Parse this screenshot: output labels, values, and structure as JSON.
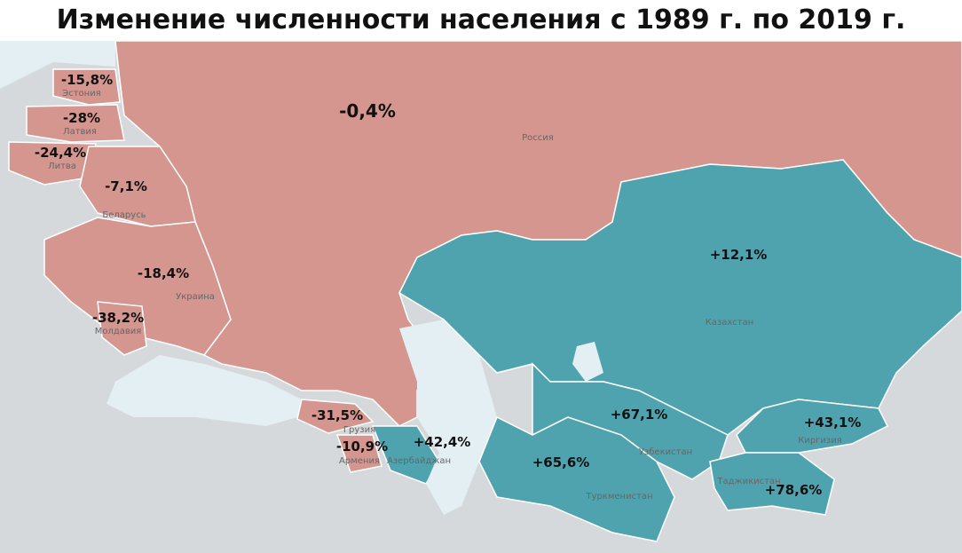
{
  "title": "Изменение численности населения с 1989 г. по 2019 г.",
  "regions": [
    {
      "name": "Эстония",
      "change": "-15,8%"
    },
    {
      "name": "Латвия",
      "change": "-28%"
    },
    {
      "name": "Литва",
      "change": "-24,4%"
    },
    {
      "name": "Беларусь",
      "change": "-7,1%"
    },
    {
      "name": "Украина",
      "change": "-18,4%"
    },
    {
      "name": "Молдавия",
      "change": "-38,2%"
    },
    {
      "name": "Россия",
      "change": "-0,4%"
    },
    {
      "name": "Грузия",
      "change": "-31,5%"
    },
    {
      "name": "Армения",
      "change": "-10,9%"
    },
    {
      "name": "Азербайджан",
      "change": "+42,4%"
    },
    {
      "name": "Казахстан",
      "change": "+12,1%"
    },
    {
      "name": "Узбекистан",
      "change": "+67,1%"
    },
    {
      "name": "Туркменистан",
      "change": "+65,6%"
    },
    {
      "name": "Киргизия",
      "change": "+43,1%"
    },
    {
      "name": "Таджикистан",
      "change": "+78,6%"
    }
  ]
}
